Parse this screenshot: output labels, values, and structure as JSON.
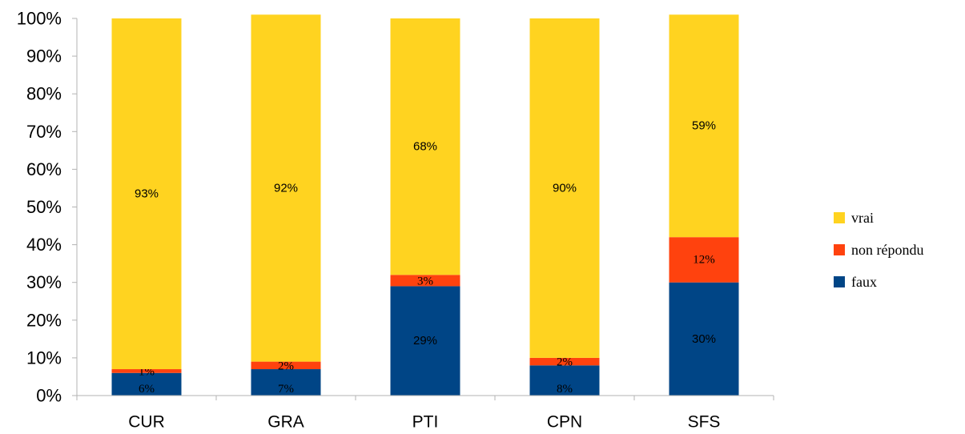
{
  "chart_data": {
    "type": "bar",
    "stacked": true,
    "categories": [
      "CUR",
      "GRA",
      "PTI",
      "CPN",
      "SFS"
    ],
    "series": [
      {
        "name": "faux",
        "color": "#004586",
        "values": [
          6,
          7,
          29,
          8,
          30
        ],
        "labels": [
          "6%",
          "7%",
          "29%",
          "8%",
          "30%"
        ]
      },
      {
        "name": "non répondu",
        "color": "#ff420e",
        "values": [
          1,
          2,
          3,
          2,
          12
        ],
        "labels": [
          "1%",
          "2%",
          "3%",
          "2%",
          "12%"
        ]
      },
      {
        "name": "vrai",
        "color": "#ffd320",
        "values": [
          93,
          92,
          68,
          90,
          59
        ],
        "labels": [
          "93%",
          "92%",
          "68%",
          "90%",
          "59%"
        ]
      }
    ],
    "ylim": [
      0,
      100
    ],
    "yticks": [
      "0%",
      "10%",
      "20%",
      "30%",
      "40%",
      "50%",
      "60%",
      "70%",
      "80%",
      "90%",
      "100%"
    ],
    "legend_position": "right",
    "grid": false
  }
}
